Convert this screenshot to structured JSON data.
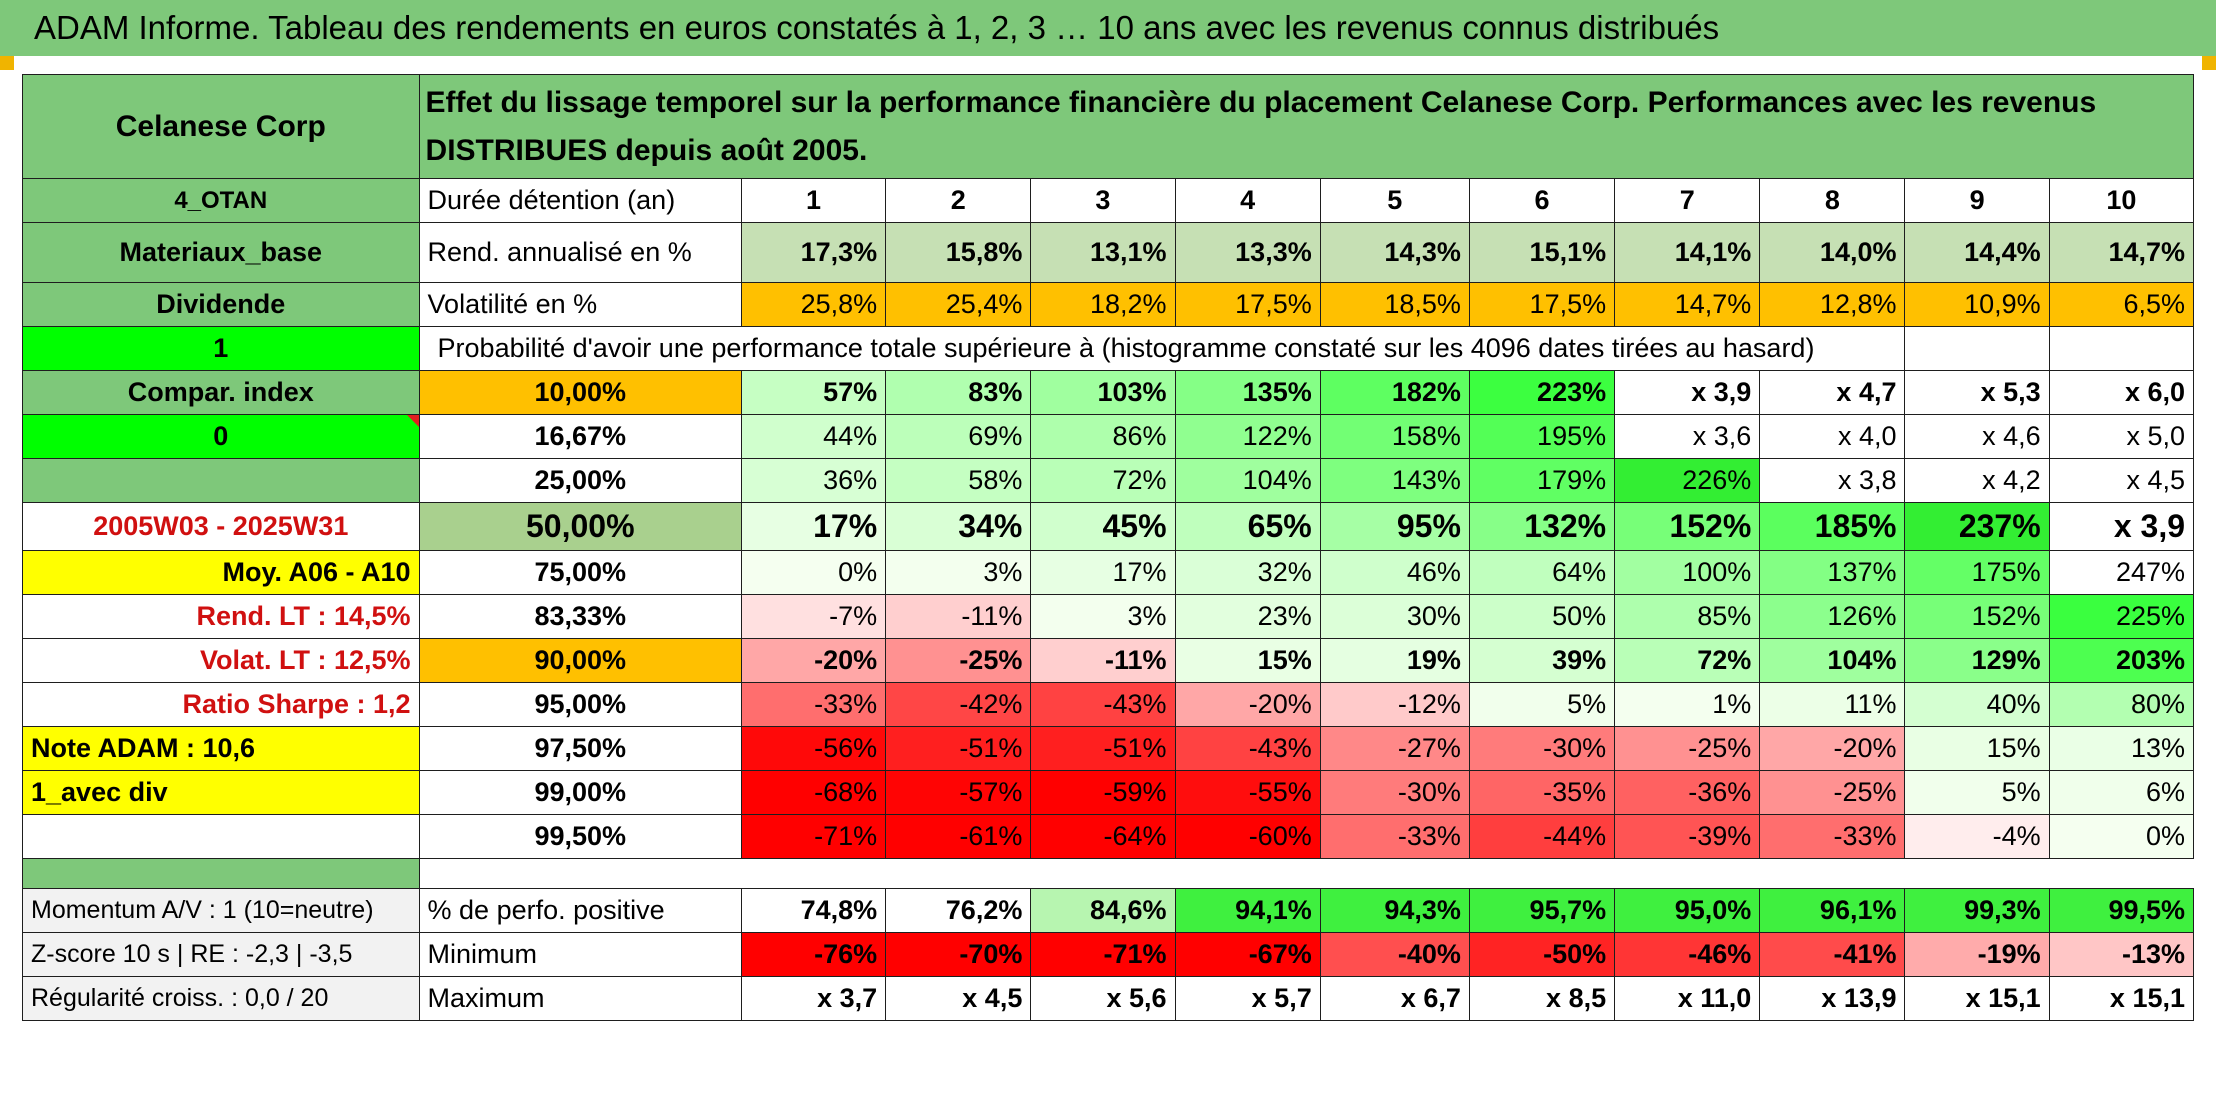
{
  "title": "ADAM Informe. Tableau des rendements en euros constatés à 1, 2, 3 … 10 ans avec les revenus connus distribués",
  "company": "Celanese Corp",
  "header_text": "Effet du lissage temporel sur la performance financière du placement Celanese Corp. Performances avec les revenus DISTRIBUES depuis août 2005.",
  "side": {
    "s1": "4_OTAN",
    "s2": "Materiaux_base",
    "s3": "Dividende",
    "s4": "1",
    "s5": "Compar. index",
    "s6": "0",
    "s8": "2005W03 - 2025W31",
    "s9": "Moy. A06 - A10",
    "s10": "Rend. LT :    14,5%",
    "s11": "Volat. LT :    12,5%",
    "s12": "Ratio Sharpe :    1,2",
    "s13": "Note ADAM : 10,6",
    "s14": "1_avec div",
    "f1": "Momentum A/V : 1 (10=neutre)",
    "f2": "Z-score 10 s | RE : -2,3 | -3,5",
    "f3": "Régularité croiss. : 0,0 / 20"
  },
  "labels": {
    "duree": "Durée détention (an)",
    "rend": "Rend. annualisé en %",
    "vol": "Volatilité en %",
    "prob": "Probabilité d'avoir une performance totale supérieure à (histogramme constaté sur les 4096 dates tirées au hasard)",
    "pos": "% de perfo. positive",
    "min": "Minimum",
    "max": "Maximum"
  },
  "years": [
    "1",
    "2",
    "3",
    "4",
    "5",
    "6",
    "7",
    "8",
    "9",
    "10"
  ],
  "rend_row": [
    "17,3%",
    "15,8%",
    "13,1%",
    "13,3%",
    "14,3%",
    "15,1%",
    "14,1%",
    "14,0%",
    "14,4%",
    "14,7%"
  ],
  "vol_row": [
    "25,8%",
    "25,4%",
    "18,2%",
    "17,5%",
    "18,5%",
    "17,5%",
    "14,7%",
    "12,8%",
    "10,9%",
    "6,5%"
  ],
  "prob_rows": [
    {
      "p": "10,00%",
      "v": [
        "57%",
        "83%",
        "103%",
        "135%",
        "182%",
        "223%",
        "x 3,9",
        "x 4,7",
        "x 5,3",
        "x 6,0"
      ]
    },
    {
      "p": "16,67%",
      "v": [
        "44%",
        "69%",
        "86%",
        "122%",
        "158%",
        "195%",
        "x 3,6",
        "x 4,0",
        "x 4,6",
        "x 5,0"
      ]
    },
    {
      "p": "25,00%",
      "v": [
        "36%",
        "58%",
        "72%",
        "104%",
        "143%",
        "179%",
        "226%",
        "x 3,8",
        "x 4,2",
        "x 4,5"
      ]
    },
    {
      "p": "50,00%",
      "v": [
        "17%",
        "34%",
        "45%",
        "65%",
        "95%",
        "132%",
        "152%",
        "185%",
        "237%",
        "x 3,9"
      ]
    },
    {
      "p": "75,00%",
      "v": [
        "0%",
        "3%",
        "17%",
        "32%",
        "46%",
        "64%",
        "100%",
        "137%",
        "175%",
        "247%"
      ]
    },
    {
      "p": "83,33%",
      "v": [
        "-7%",
        "-11%",
        "3%",
        "23%",
        "30%",
        "50%",
        "85%",
        "126%",
        "152%",
        "225%"
      ]
    },
    {
      "p": "90,00%",
      "v": [
        "-20%",
        "-25%",
        "-11%",
        "15%",
        "19%",
        "39%",
        "72%",
        "104%",
        "129%",
        "203%"
      ]
    },
    {
      "p": "95,00%",
      "v": [
        "-33%",
        "-42%",
        "-43%",
        "-20%",
        "-12%",
        "5%",
        "1%",
        "11%",
        "40%",
        "80%"
      ]
    },
    {
      "p": "97,50%",
      "v": [
        "-56%",
        "-51%",
        "-51%",
        "-43%",
        "-27%",
        "-30%",
        "-25%",
        "-20%",
        "15%",
        "13%"
      ]
    },
    {
      "p": "99,00%",
      "v": [
        "-68%",
        "-57%",
        "-59%",
        "-55%",
        "-30%",
        "-35%",
        "-36%",
        "-25%",
        "5%",
        "6%"
      ]
    },
    {
      "p": "99,50%",
      "v": [
        "-71%",
        "-61%",
        "-64%",
        "-60%",
        "-33%",
        "-44%",
        "-39%",
        "-33%",
        "-4%",
        "0%"
      ]
    }
  ],
  "pos_row": [
    "74,8%",
    "76,2%",
    "84,6%",
    "94,1%",
    "94,3%",
    "95,7%",
    "95,0%",
    "96,1%",
    "99,3%",
    "99,5%"
  ],
  "min_row": [
    "-76%",
    "-70%",
    "-71%",
    "-67%",
    "-40%",
    "-50%",
    "-46%",
    "-41%",
    "-19%",
    "-13%"
  ],
  "max_row": [
    "x 3,7",
    "x 4,5",
    "x 5,6",
    "x 5,7",
    "x 6,7",
    "x 8,5",
    "x 11,0",
    "x 13,9",
    "x 15,1",
    "x 15,1"
  ],
  "colors": {
    "header_green": "#7ec87a",
    "rend_fill": "#c6e0b4",
    "vol_orange": "#ffc000",
    "bright_green": "#00ff00",
    "yellow": "#ffff00",
    "grey_green": "#a9d08e",
    "red_text": "#d01010"
  }
}
